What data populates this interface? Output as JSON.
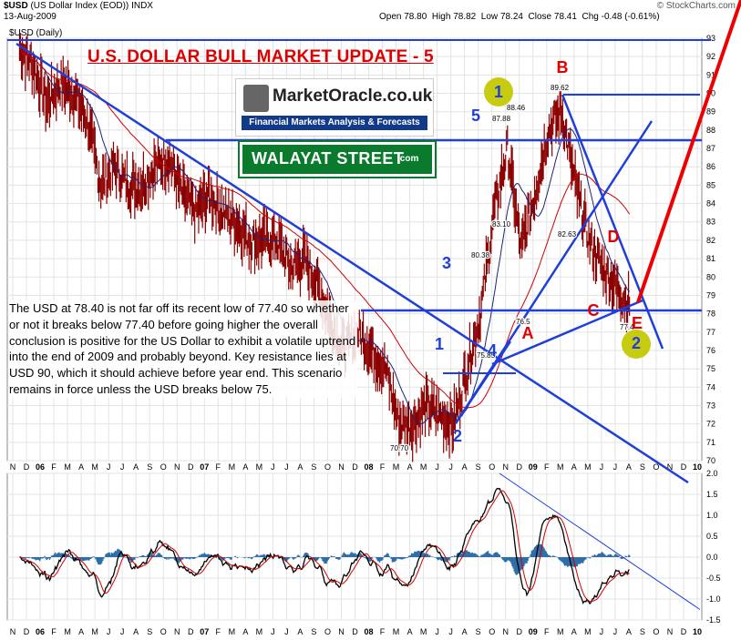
{
  "header": {
    "symbol": "$USD",
    "name": "(US Dollar Index (EOD))",
    "exchange": "INDX",
    "date": "13-Aug-2009",
    "open_label": "Open",
    "open": "78.80",
    "high_label": "High",
    "high": "78.82",
    "low_label": "Low",
    "low": "78.24",
    "close_label": "Close",
    "close": "78.41",
    "chg_label": "Chg",
    "chg": "-0.48 (-0.61%)",
    "source": "© StockCharts.com",
    "legend": "$USD (Daily)"
  },
  "banner": {
    "title": "U.S. DOLLAR BULL MARKET UPDATE - 5",
    "logo_name": "MarketOracle.co.uk",
    "logo_tagline": "Financial Markets Analysis & Forecasts",
    "sign_text": "WALAYAT STREET",
    "sign_suffix": ".com"
  },
  "commentary": "The USD at 78.40 is not far off its recent low of 77.40 so whether or not it breaks below 77.40 before going higher the overall conclusion is positive for the US Dollar to exhibit a volatile uptrend into the end of 2009 and probably beyond. Key resistance lies at USD 90, which it should achieve before year end. This scenario remains in force unless the USD breaks below 75.",
  "colors": {
    "price": "#8b0000",
    "ma_short": "#1a237e",
    "ma_long": "#d00000",
    "trend": "#1f3fd8",
    "wave_label": "#1f3fd8",
    "abc_label": "#e00000",
    "circle": "#c8cc10",
    "hist": "#2f6ea8",
    "forecast": "#ee0000"
  },
  "chart_data": [
    {
      "type": "line",
      "title": "$USD (Daily)",
      "ylim": [
        70,
        93
      ],
      "y_ticks": [
        70,
        71,
        72,
        73,
        74,
        75,
        76,
        77,
        78,
        79,
        80,
        81,
        82,
        83,
        84,
        85,
        86,
        87,
        88,
        89,
        90,
        91,
        92,
        93
      ],
      "x_ticks": [
        "N",
        "D",
        "06",
        "F",
        "M",
        "A",
        "M",
        "J",
        "J",
        "A",
        "S",
        "O",
        "N",
        "D",
        "07",
        "F",
        "M",
        "A",
        "M",
        "J",
        "J",
        "A",
        "S",
        "O",
        "N",
        "D",
        "08",
        "F",
        "M",
        "A",
        "M",
        "J",
        "J",
        "A",
        "S",
        "O",
        "N",
        "D",
        "09",
        "F",
        "M",
        "A",
        "M",
        "J",
        "J",
        "A",
        "S",
        "O",
        "N",
        "D",
        "10"
      ],
      "grid": true,
      "series": [
        {
          "name": "$USD",
          "x": [
            "Nov-05",
            "Dec-05",
            "Jan-06",
            "Feb-06",
            "Mar-06",
            "Apr-06",
            "May-06",
            "Jun-06",
            "Jul-06",
            "Aug-06",
            "Sep-06",
            "Oct-06",
            "Nov-06",
            "Dec-06",
            "Jan-07",
            "Feb-07",
            "Mar-07",
            "Apr-07",
            "May-07",
            "Jun-07",
            "Jul-07",
            "Aug-07",
            "Sep-07",
            "Oct-07",
            "Nov-07",
            "Dec-07",
            "Jan-08",
            "Feb-08",
            "Mar-08",
            "Apr-08",
            "May-08",
            "Jun-08",
            "Jul-08",
            "Aug-08",
            "Sep-08",
            "Oct-08",
            "Nov-08",
            "Dec-08",
            "Jan-09",
            "Feb-09",
            "Mar-09",
            "Apr-09",
            "May-09",
            "Jun-09",
            "Jul-09",
            "Aug-09"
          ],
          "values": [
            92.5,
            91.5,
            89.5,
            90.5,
            90.0,
            88.5,
            85.0,
            86.0,
            85.0,
            85.0,
            86.0,
            86.5,
            84.5,
            83.5,
            84.5,
            83.5,
            83.0,
            82.0,
            82.0,
            82.0,
            80.5,
            81.0,
            79.5,
            77.5,
            76.0,
            77.0,
            76.0,
            75.0,
            72.0,
            72.0,
            73.0,
            72.5,
            72.0,
            75.0,
            78.0,
            83.5,
            87.0,
            81.5,
            84.5,
            88.0,
            89.0,
            85.0,
            82.0,
            80.5,
            79.5,
            78.41
          ]
        }
      ],
      "price_labels": [
        "87.88",
        "88.46",
        "89.62",
        "83.10",
        "80.38",
        "75.85",
        "70.70",
        "82.63",
        "77.4",
        "76.5"
      ],
      "wave_labels": [
        "1",
        "2",
        "3",
        "4",
        "5",
        "1",
        "2",
        "B",
        "A",
        "C",
        "D",
        "E"
      ]
    },
    {
      "type": "line",
      "title": "",
      "ylim": [
        -1.5,
        2.0
      ],
      "y_ticks": [
        "2.0",
        "1.5",
        "1.0",
        "0.5",
        "0.0",
        "-0.5",
        "-1.0",
        "-1.5"
      ],
      "x_ticks": [
        "N",
        "D",
        "06",
        "F",
        "M",
        "A",
        "M",
        "J",
        "J",
        "A",
        "S",
        "O",
        "N",
        "D",
        "07",
        "F",
        "M",
        "A",
        "M",
        "J",
        "J",
        "A",
        "S",
        "O",
        "N",
        "D",
        "08",
        "F",
        "M",
        "A",
        "M",
        "J",
        "J",
        "A",
        "S",
        "O",
        "N",
        "D",
        "09",
        "F",
        "M",
        "A",
        "M",
        "J",
        "J",
        "A",
        "S",
        "O",
        "N",
        "D",
        "10"
      ]
    }
  ]
}
